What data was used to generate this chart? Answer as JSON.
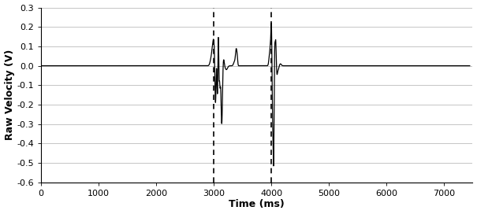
{
  "xlim": [
    0,
    7500
  ],
  "ylim": [
    -0.6,
    0.3
  ],
  "xlabel": "Time (ms)",
  "ylabel": "Raw Velocity (V)",
  "xticks": [
    0,
    1000,
    2000,
    3000,
    4000,
    5000,
    6000,
    7000
  ],
  "yticks": [
    -0.6,
    -0.5,
    -0.4,
    -0.3,
    -0.2,
    -0.1,
    0.0,
    0.1,
    0.2,
    0.3
  ],
  "vline1": 3000,
  "vline2": 4000,
  "line_color": "#000000",
  "background_color": "#ffffff",
  "grid_color": "#bbbbbb"
}
